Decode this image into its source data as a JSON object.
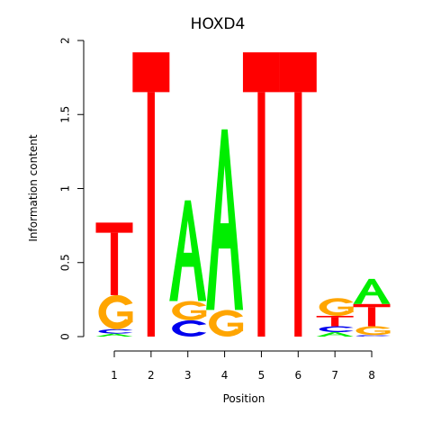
{
  "chart_data": {
    "type": "sequence-logo",
    "title": "HOXD4",
    "xlabel": "Position",
    "ylabel": "Information content",
    "ylim": [
      0,
      2
    ],
    "yticks": [
      "0",
      "0.5",
      "1",
      "1.5",
      "2"
    ],
    "xticks": [
      "1",
      "2",
      "3",
      "4",
      "5",
      "6",
      "7",
      "8"
    ],
    "colors": {
      "A": "#00ee00",
      "C": "#0000ee",
      "G": "#ffa500",
      "T": "#ff0000"
    },
    "positions": [
      {
        "x": "1",
        "stack": [
          {
            "letter": "A",
            "height": 0.02
          },
          {
            "letter": "C",
            "height": 0.03
          },
          {
            "letter": "G",
            "height": 0.23
          },
          {
            "letter": "T",
            "height": 0.49
          }
        ]
      },
      {
        "x": "2",
        "stack": [
          {
            "letter": "T",
            "height": 1.92
          }
        ]
      },
      {
        "x": "3",
        "stack": [
          {
            "letter": "C",
            "height": 0.11
          },
          {
            "letter": "G",
            "height": 0.13
          },
          {
            "letter": "A",
            "height": 0.68
          }
        ]
      },
      {
        "x": "4",
        "stack": [
          {
            "letter": "G",
            "height": 0.18
          },
          {
            "letter": "A",
            "height": 1.22
          }
        ]
      },
      {
        "x": "5",
        "stack": [
          {
            "letter": "T",
            "height": 1.92
          }
        ]
      },
      {
        "x": "6",
        "stack": [
          {
            "letter": "T",
            "height": 1.92
          }
        ]
      },
      {
        "x": "7",
        "stack": [
          {
            "letter": "A",
            "height": 0.03
          },
          {
            "letter": "C",
            "height": 0.04
          },
          {
            "letter": "T",
            "height": 0.07
          },
          {
            "letter": "G",
            "height": 0.12
          }
        ]
      },
      {
        "x": "8",
        "stack": [
          {
            "letter": "C",
            "height": 0.01
          },
          {
            "letter": "G",
            "height": 0.06
          },
          {
            "letter": "T",
            "height": 0.15
          },
          {
            "letter": "A",
            "height": 0.17
          }
        ]
      }
    ]
  }
}
